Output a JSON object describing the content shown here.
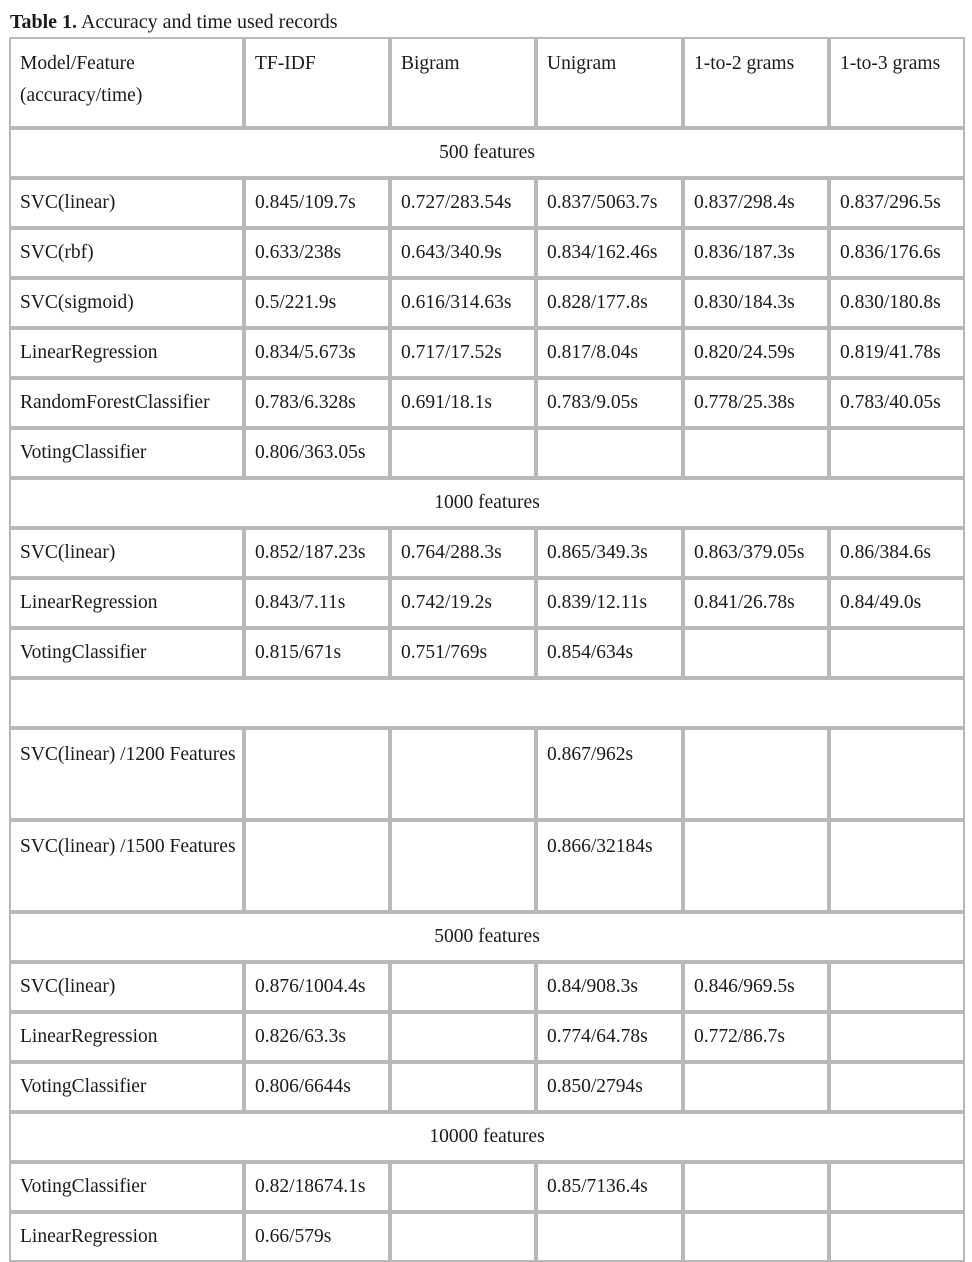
{
  "caption": {
    "label": "Table 1.",
    "text": " Accuracy and time used records"
  },
  "columns": [
    "Model/Feature (accuracy/time)",
    "TF-IDF",
    "Bigram",
    "Unigram",
    "1-to-2 grams",
    "1-to-3 grams"
  ],
  "sections": [
    {
      "title": "500 features",
      "rows": [
        [
          "SVC(linear)",
          "0.845/109.7s",
          "0.727/283.54s",
          "0.837/5063.7s",
          "0.837/298.4s",
          "0.837/296.5s"
        ],
        [
          "SVC(rbf)",
          "0.633/238s",
          "0.643/340.9s",
          "0.834/162.46s",
          "0.836/187.3s",
          "0.836/176.6s"
        ],
        [
          "SVC(sigmoid)",
          "0.5/221.9s",
          "0.616/314.63s",
          "0.828/177.8s",
          "0.830/184.3s",
          "0.830/180.8s"
        ],
        [
          "LinearRegression",
          "0.834/5.673s",
          "0.717/17.52s",
          "0.817/8.04s",
          "0.820/24.59s",
          "0.819/41.78s"
        ],
        [
          "RandomForestClassifier",
          "0.783/6.328s",
          "0.691/18.1s",
          "0.783/9.05s",
          "0.778/25.38s",
          "0.783/40.05s"
        ],
        [
          "VotingClassifier",
          "0.806/363.05s",
          "",
          "",
          "",
          ""
        ]
      ]
    },
    {
      "title": "1000 features",
      "rows": [
        [
          "SVC(linear)",
          "0.852/187.23s",
          "0.764/288.3s",
          "0.865/349.3s",
          "0.863/379.05s",
          "0.86/384.6s"
        ],
        [
          "LinearRegression",
          "0.843/7.11s",
          "0.742/19.2s",
          "0.839/12.11s",
          "0.841/26.78s",
          "0.84/49.0s"
        ],
        [
          "VotingClassifier",
          "0.815/671s",
          "0.751/769s",
          "0.854/634s",
          "",
          ""
        ]
      ]
    },
    {
      "title": "",
      "rows": [
        [
          "SVC(linear) /1200 Features",
          "",
          "",
          "0.867/962s",
          "",
          ""
        ],
        [
          "SVC(linear) /1500 Features",
          "",
          "",
          "0.866/32184s",
          "",
          ""
        ]
      ]
    },
    {
      "title": "5000 features",
      "rows": [
        [
          "SVC(linear)",
          "0.876/1004.4s",
          "",
          "0.84/908.3s",
          "0.846/969.5s",
          ""
        ],
        [
          "LinearRegression",
          "0.826/63.3s",
          "",
          "0.774/64.78s",
          "0.772/86.7s",
          ""
        ],
        [
          "VotingClassifier",
          "0.806/6644s",
          "",
          "0.850/2794s",
          "",
          ""
        ]
      ]
    },
    {
      "title": "10000 features",
      "rows": [
        [
          "VotingClassifier",
          "0.82/18674.1s",
          "",
          "0.85/7136.4s",
          "",
          ""
        ],
        [
          "LinearRegression",
          "0.66/579s",
          "",
          "",
          "",
          ""
        ]
      ]
    }
  ]
}
